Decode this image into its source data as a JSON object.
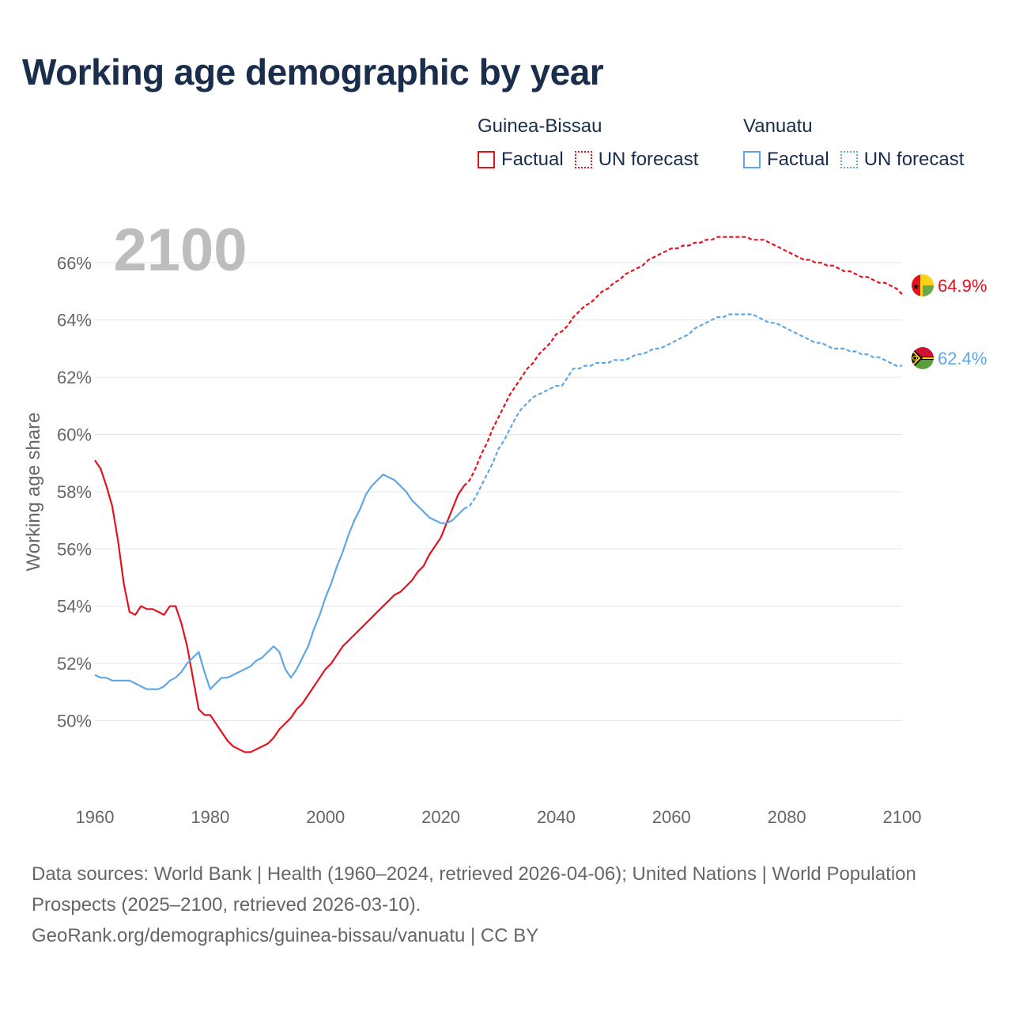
{
  "title": "Working age demographic by year",
  "year_label": "2100",
  "legend": {
    "groups": [
      {
        "country": "Guinea-Bissau",
        "color": "#e4121e",
        "factual_label": "Factual",
        "forecast_label": "UN forecast"
      },
      {
        "country": "Vanuatu",
        "color": "#5ea7e6",
        "factual_label": "Factual",
        "forecast_label": "UN forecast"
      }
    ]
  },
  "sources": {
    "line1": "Data sources: World Bank | Health (1960–2024, retrieved 2026-04-06); United Nations | World Population Prospects (2025–2100, retrieved 2026-03-10).",
    "line2": "GeoRank.org/demographics/guinea-bissau/vanuatu | CC BY"
  },
  "chart_data": {
    "type": "line",
    "title": "Working age demographic by year",
    "xlabel": "",
    "ylabel": "Working age share",
    "xlim": [
      1960,
      2100
    ],
    "ylim": [
      47.5,
      67.5
    ],
    "x_ticks": [
      "1960",
      "1980",
      "2000",
      "2020",
      "2040",
      "2060",
      "2080",
      "2100"
    ],
    "y_ticks": [
      "50%",
      "52%",
      "54%",
      "56%",
      "58%",
      "60%",
      "62%",
      "64%",
      "66%"
    ],
    "forecast_start_year": 2025,
    "series": [
      {
        "name": "Guinea-Bissau",
        "color": "#e4121e",
        "end_label": "64.9%",
        "flag": "guinea-bissau-flag",
        "factual": {
          "x": [
            1960,
            1961,
            1962,
            1963,
            1964,
            1965,
            1966,
            1967,
            1968,
            1969,
            1970,
            1971,
            1972,
            1973,
            1974,
            1975,
            1976,
            1977,
            1978,
            1979,
            1980,
            1981,
            1982,
            1983,
            1984,
            1985,
            1986,
            1987,
            1988,
            1989,
            1990,
            1991,
            1992,
            1993,
            1994,
            1995,
            1996,
            1997,
            1998,
            1999,
            2000,
            2001,
            2002,
            2003,
            2004,
            2005,
            2006,
            2007,
            2008,
            2009,
            2010,
            2011,
            2012,
            2013,
            2014,
            2015,
            2016,
            2017,
            2018,
            2019,
            2020,
            2021,
            2022,
            2023,
            2024
          ],
          "y": [
            59.1,
            58.8,
            58.2,
            57.5,
            56.3,
            54.8,
            53.8,
            53.7,
            54.0,
            53.9,
            53.9,
            53.8,
            53.7,
            54.0,
            54.0,
            53.4,
            52.6,
            51.5,
            50.4,
            50.2,
            50.2,
            49.9,
            49.6,
            49.3,
            49.1,
            49.0,
            48.9,
            48.9,
            49.0,
            49.1,
            49.2,
            49.4,
            49.7,
            49.9,
            50.1,
            50.4,
            50.6,
            50.9,
            51.2,
            51.5,
            51.8,
            52.0,
            52.3,
            52.6,
            52.8,
            53.0,
            53.2,
            53.4,
            53.6,
            53.8,
            54.0,
            54.2,
            54.4,
            54.5,
            54.7,
            54.9,
            55.2,
            55.4,
            55.8,
            56.1,
            56.4,
            56.9,
            57.4,
            57.9,
            58.2
          ]
        },
        "forecast": {
          "x": [
            2024,
            2025,
            2026,
            2027,
            2028,
            2029,
            2030,
            2031,
            2032,
            2033,
            2034,
            2035,
            2036,
            2037,
            2038,
            2039,
            2040,
            2041,
            2042,
            2043,
            2044,
            2045,
            2046,
            2047,
            2048,
            2049,
            2050,
            2051,
            2052,
            2053,
            2054,
            2055,
            2056,
            2057,
            2058,
            2059,
            2060,
            2061,
            2062,
            2063,
            2064,
            2065,
            2066,
            2067,
            2068,
            2069,
            2070,
            2071,
            2072,
            2073,
            2074,
            2075,
            2076,
            2077,
            2078,
            2079,
            2080,
            2081,
            2082,
            2083,
            2084,
            2085,
            2086,
            2087,
            2088,
            2089,
            2090,
            2091,
            2092,
            2093,
            2094,
            2095,
            2096,
            2097,
            2098,
            2099,
            2100
          ],
          "y": [
            58.2,
            58.4,
            58.8,
            59.3,
            59.7,
            60.2,
            60.6,
            61.0,
            61.4,
            61.7,
            62.0,
            62.3,
            62.5,
            62.8,
            63.0,
            63.2,
            63.5,
            63.6,
            63.8,
            64.1,
            64.3,
            64.5,
            64.6,
            64.8,
            65.0,
            65.1,
            65.3,
            65.4,
            65.6,
            65.7,
            65.8,
            65.9,
            66.1,
            66.2,
            66.3,
            66.4,
            66.5,
            66.5,
            66.6,
            66.6,
            66.7,
            66.7,
            66.8,
            66.8,
            66.9,
            66.9,
            66.9,
            66.9,
            66.9,
            66.9,
            66.8,
            66.8,
            66.8,
            66.7,
            66.6,
            66.5,
            66.4,
            66.3,
            66.2,
            66.1,
            66.1,
            66.0,
            66.0,
            65.9,
            65.9,
            65.8,
            65.7,
            65.7,
            65.6,
            65.5,
            65.5,
            65.4,
            65.3,
            65.3,
            65.2,
            65.1,
            64.9
          ]
        }
      },
      {
        "name": "Vanuatu",
        "color": "#5ea7e6",
        "end_label": "62.4%",
        "flag": "vanuatu-flag",
        "factual": {
          "x": [
            1960,
            1961,
            1962,
            1963,
            1964,
            1965,
            1966,
            1967,
            1968,
            1969,
            1970,
            1971,
            1972,
            1973,
            1974,
            1975,
            1976,
            1977,
            1978,
            1979,
            1980,
            1981,
            1982,
            1983,
            1984,
            1985,
            1986,
            1987,
            1988,
            1989,
            1990,
            1991,
            1992,
            1993,
            1994,
            1995,
            1996,
            1997,
            1998,
            1999,
            2000,
            2001,
            2002,
            2003,
            2004,
            2005,
            2006,
            2007,
            2008,
            2009,
            2010,
            2011,
            2012,
            2013,
            2014,
            2015,
            2016,
            2017,
            2018,
            2019,
            2020,
            2021,
            2022,
            2023,
            2024
          ],
          "y": [
            51.6,
            51.5,
            51.5,
            51.4,
            51.4,
            51.4,
            51.4,
            51.3,
            51.2,
            51.1,
            51.1,
            51.1,
            51.2,
            51.4,
            51.5,
            51.7,
            52.0,
            52.2,
            52.4,
            51.7,
            51.1,
            51.3,
            51.5,
            51.5,
            51.6,
            51.7,
            51.8,
            51.9,
            52.1,
            52.2,
            52.4,
            52.6,
            52.4,
            51.8,
            51.5,
            51.8,
            52.2,
            52.6,
            53.2,
            53.7,
            54.3,
            54.8,
            55.4,
            55.9,
            56.5,
            57.0,
            57.4,
            57.9,
            58.2,
            58.4,
            58.6,
            58.5,
            58.4,
            58.2,
            58.0,
            57.7,
            57.5,
            57.3,
            57.1,
            57.0,
            56.9,
            56.9,
            57.0,
            57.2,
            57.4
          ]
        },
        "forecast": {
          "x": [
            2024,
            2025,
            2026,
            2027,
            2028,
            2029,
            2030,
            2031,
            2032,
            2033,
            2034,
            2035,
            2036,
            2037,
            2038,
            2039,
            2040,
            2041,
            2042,
            2043,
            2044,
            2045,
            2046,
            2047,
            2048,
            2049,
            2050,
            2051,
            2052,
            2053,
            2054,
            2055,
            2056,
            2057,
            2058,
            2059,
            2060,
            2061,
            2062,
            2063,
            2064,
            2065,
            2066,
            2067,
            2068,
            2069,
            2070,
            2071,
            2072,
            2073,
            2074,
            2075,
            2076,
            2077,
            2078,
            2079,
            2080,
            2081,
            2082,
            2083,
            2084,
            2085,
            2086,
            2087,
            2088,
            2089,
            2090,
            2091,
            2092,
            2093,
            2094,
            2095,
            2096,
            2097,
            2098,
            2099,
            2100
          ],
          "y": [
            57.4,
            57.5,
            57.8,
            58.2,
            58.6,
            59.0,
            59.5,
            59.8,
            60.2,
            60.6,
            60.9,
            61.1,
            61.3,
            61.4,
            61.5,
            61.6,
            61.7,
            61.7,
            62.0,
            62.3,
            62.3,
            62.4,
            62.4,
            62.5,
            62.5,
            62.5,
            62.6,
            62.6,
            62.6,
            62.7,
            62.8,
            62.8,
            62.9,
            63.0,
            63.0,
            63.1,
            63.2,
            63.3,
            63.4,
            63.5,
            63.7,
            63.8,
            63.9,
            64.0,
            64.1,
            64.1,
            64.2,
            64.2,
            64.2,
            64.2,
            64.2,
            64.1,
            64.0,
            63.9,
            63.9,
            63.8,
            63.7,
            63.6,
            63.5,
            63.4,
            63.3,
            63.2,
            63.2,
            63.1,
            63.0,
            63.0,
            63.0,
            62.9,
            62.9,
            62.8,
            62.8,
            62.7,
            62.7,
            62.6,
            62.5,
            62.4,
            62.4
          ]
        }
      }
    ]
  }
}
